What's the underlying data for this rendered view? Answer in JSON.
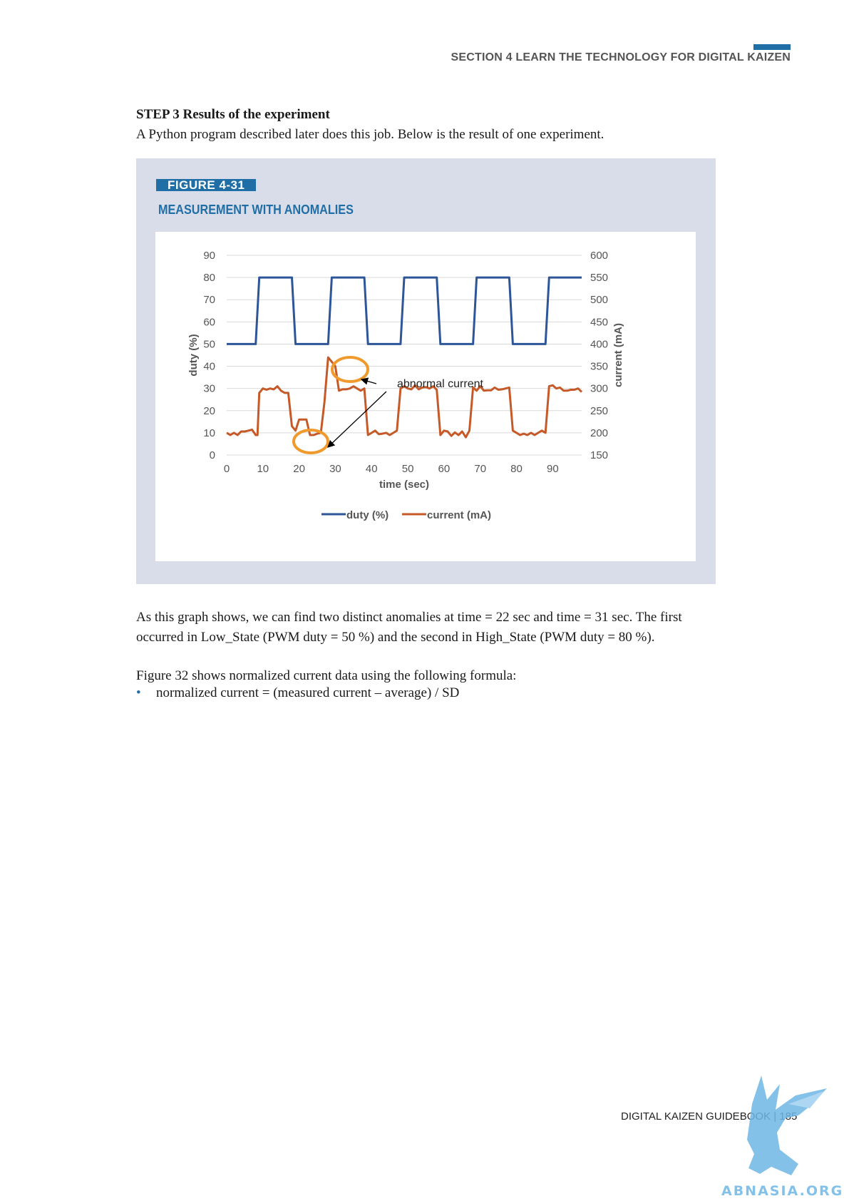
{
  "header": {
    "section": "SECTION 4  LEARN THE TECHNOLOGY FOR DIGITAL KAIZEN"
  },
  "step": {
    "title": "STEP 3 Results of the experiment",
    "description": "A Python program described later does this job. Below is the result of one experiment."
  },
  "figure": {
    "label": "FIGURE 4-31",
    "title": "MEASUREMENT WITH ANOMALIES"
  },
  "chart_data": {
    "type": "line",
    "xlabel": "time (sec)",
    "ylabel": "duty (%)",
    "y2label": "current (mA)",
    "xlim": [
      0,
      98
    ],
    "ylim": [
      0,
      90
    ],
    "y2lim": [
      150,
      600
    ],
    "x_ticks": [
      0,
      10,
      20,
      30,
      40,
      50,
      60,
      70,
      80,
      90
    ],
    "y_ticks": [
      0,
      10,
      20,
      30,
      40,
      50,
      60,
      70,
      80,
      90
    ],
    "y2_ticks": [
      150,
      200,
      250,
      300,
      350,
      400,
      450,
      500,
      550,
      600
    ],
    "grid": true,
    "legend": "bottom",
    "series": [
      {
        "name": "duty (%)",
        "axis": "left",
        "color": "#2e5597",
        "x": [
          0,
          8,
          9,
          18,
          19,
          28,
          29,
          38,
          39,
          48,
          49,
          58,
          59,
          68,
          69,
          78,
          79,
          88,
          89,
          98
        ],
        "y": [
          50,
          50,
          80,
          80,
          50,
          50,
          80,
          80,
          50,
          50,
          80,
          80,
          50,
          50,
          80,
          80,
          50,
          50,
          80,
          80
        ]
      },
      {
        "name": "current (mA)",
        "axis": "right",
        "color": "#c55a28",
        "x": [
          0,
          1,
          2,
          3,
          4,
          5,
          6,
          7,
          8,
          8.5,
          9,
          10,
          11,
          12,
          13,
          14,
          15,
          16,
          17,
          18,
          19,
          20,
          21,
          22,
          23,
          24,
          25,
          26,
          27,
          28,
          29,
          30,
          31,
          32,
          33,
          34,
          35,
          36,
          37,
          38,
          39,
          40,
          41,
          42,
          43,
          44,
          45,
          46,
          47,
          48,
          49,
          50,
          51,
          52,
          53,
          54,
          55,
          56,
          57,
          58,
          59,
          60,
          61,
          62,
          63,
          64,
          65,
          66,
          67,
          68,
          69,
          70,
          71,
          72,
          73,
          74,
          75,
          76,
          77,
          78,
          79,
          80,
          81,
          82,
          83,
          84,
          85,
          86,
          87,
          88,
          89,
          90,
          91,
          92,
          93,
          94,
          95,
          96,
          97,
          98
        ],
        "y": [
          200,
          195,
          200,
          195,
          203,
          203,
          205,
          207,
          195,
          195,
          290,
          300,
          297,
          300,
          298,
          305,
          295,
          290,
          290,
          215,
          205,
          230,
          230,
          230,
          195,
          195,
          198,
          200,
          270,
          370,
          360,
          350,
          295,
          298,
          298,
          300,
          305,
          300,
          295,
          300,
          195,
          200,
          205,
          197,
          198,
          200,
          195,
          200,
          205,
          300,
          305,
          300,
          298,
          307,
          298,
          302,
          303,
          300,
          305,
          297,
          195,
          205,
          203,
          193,
          201,
          195,
          203,
          190,
          205,
          302,
          295,
          305,
          295,
          296,
          296,
          302,
          297,
          298,
          300,
          302,
          205,
          200,
          195,
          198,
          195,
          200,
          195,
          200,
          205,
          200,
          305,
          307,
          300,
          302,
          295,
          295,
          297,
          297,
          300,
          292
        ]
      }
    ],
    "annotations": [
      {
        "text": "abnormal current"
      }
    ]
  },
  "body": {
    "paragraph1": "As this graph shows, we can find two distinct anomalies at time = 22 sec and time = 31 sec. The first occurred in Low_State (PWM duty = 50 %) and the second in High_State (PWM duty = 80 %).",
    "paragraph2": "Figure 32 shows normalized current data using the following formula:",
    "bullet_symbol": "•",
    "bullet": "normalized current = (measured current – average) / SD"
  },
  "footer": {
    "text": "DIGITAL KAIZEN GUIDEBOOK | 185"
  },
  "watermark": {
    "text": "ABNASIA.ORG",
    "color": "#6fb7e6"
  }
}
